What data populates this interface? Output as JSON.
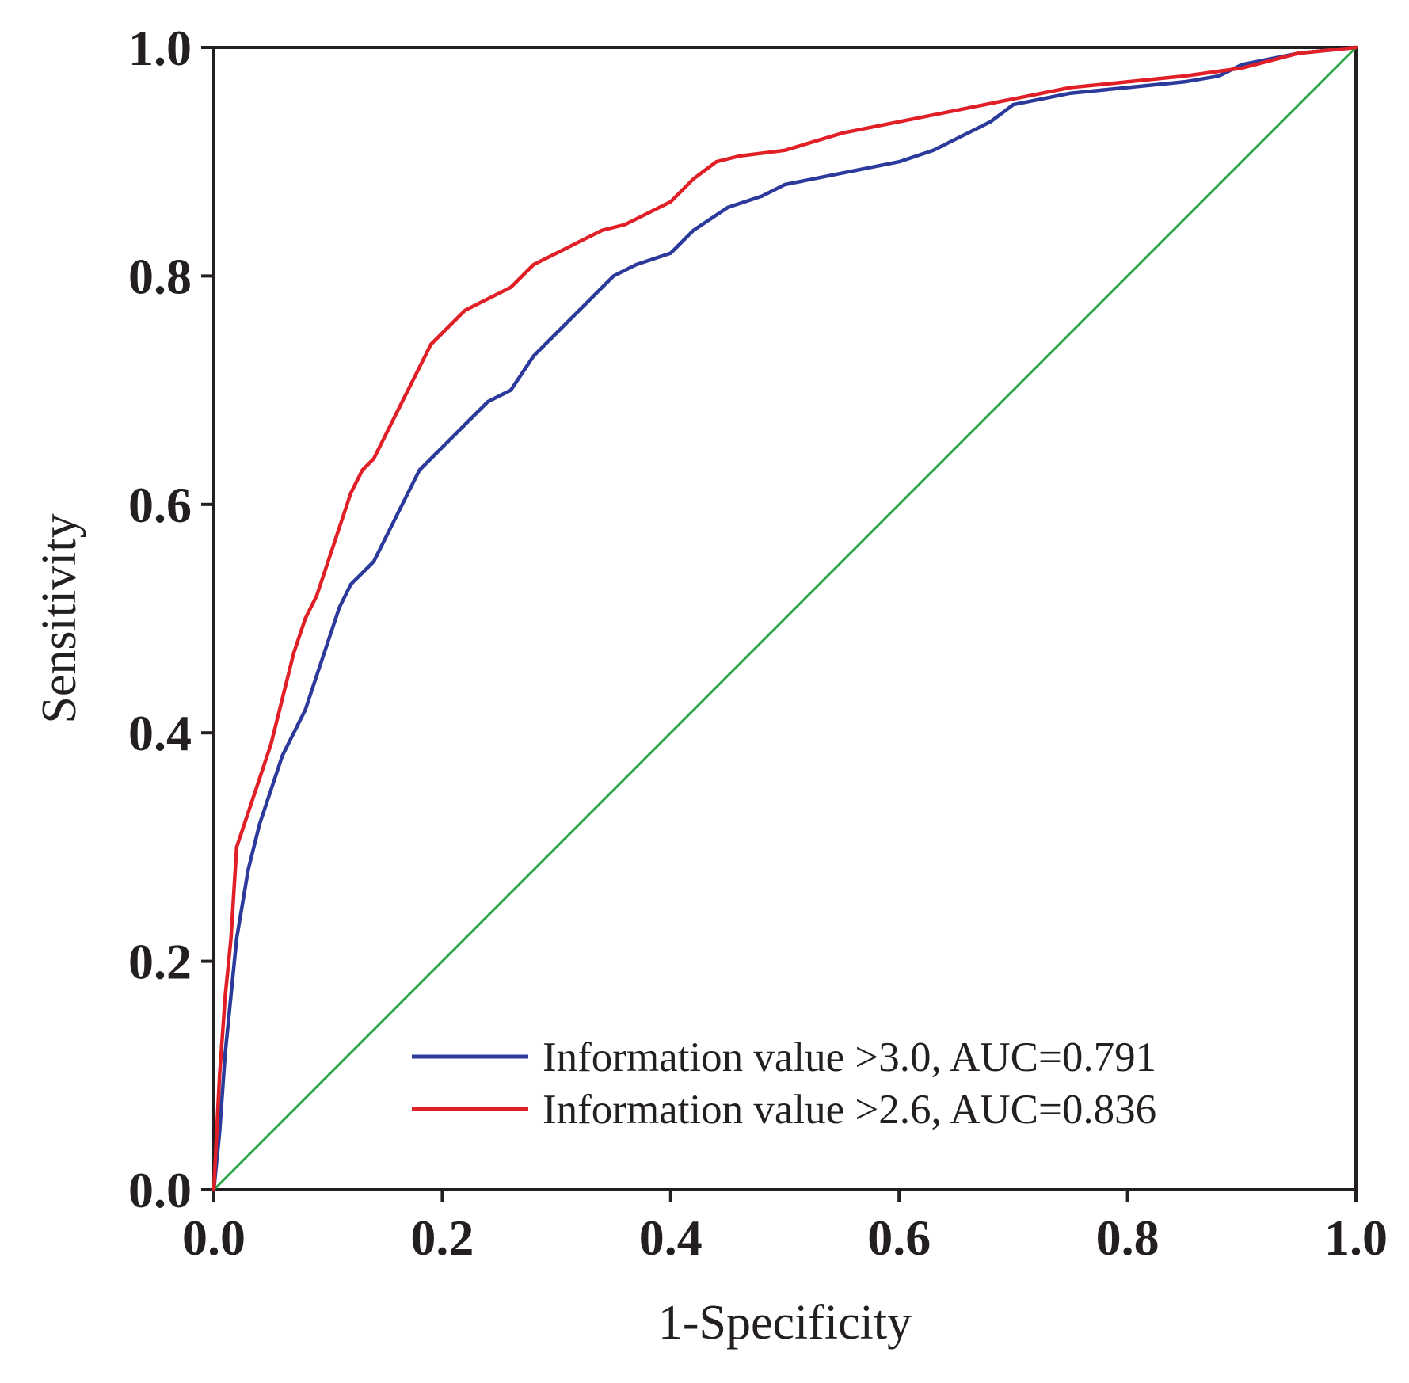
{
  "chart_data": {
    "type": "line",
    "title": "",
    "xlabel": "1-Specificity",
    "ylabel": "Sensitivity",
    "xlim": [
      0,
      1
    ],
    "ylim": [
      0,
      1
    ],
    "xticks": [
      "0.0",
      "0.2",
      "0.4",
      "0.6",
      "0.8",
      "1.0"
    ],
    "yticks": [
      "0.0",
      "0.2",
      "0.4",
      "0.6",
      "0.8",
      "1.0"
    ],
    "grid": false,
    "legend_position": "bottom-right",
    "series": [
      {
        "name": "Information value >3.0, AUC=0.791",
        "color": "#2b3a9b",
        "x": [
          0,
          0.005,
          0.01,
          0.015,
          0.02,
          0.03,
          0.04,
          0.05,
          0.06,
          0.07,
          0.08,
          0.09,
          0.1,
          0.11,
          0.12,
          0.13,
          0.14,
          0.15,
          0.16,
          0.17,
          0.18,
          0.19,
          0.2,
          0.21,
          0.22,
          0.24,
          0.26,
          0.28,
          0.3,
          0.32,
          0.33,
          0.35,
          0.37,
          0.4,
          0.42,
          0.45,
          0.48,
          0.5,
          0.55,
          0.6,
          0.63,
          0.66,
          0.68,
          0.7,
          0.75,
          0.8,
          0.85,
          0.88,
          0.9,
          0.95,
          1.0
        ],
        "y": [
          0,
          0.05,
          0.12,
          0.17,
          0.22,
          0.28,
          0.32,
          0.35,
          0.38,
          0.4,
          0.42,
          0.45,
          0.48,
          0.51,
          0.53,
          0.54,
          0.55,
          0.57,
          0.59,
          0.61,
          0.63,
          0.64,
          0.65,
          0.66,
          0.67,
          0.69,
          0.7,
          0.73,
          0.75,
          0.77,
          0.78,
          0.8,
          0.81,
          0.82,
          0.84,
          0.86,
          0.87,
          0.88,
          0.89,
          0.9,
          0.91,
          0.925,
          0.935,
          0.95,
          0.96,
          0.965,
          0.97,
          0.975,
          0.985,
          0.995,
          1.0
        ]
      },
      {
        "name": "Information value >2.6, AUC=0.836",
        "color": "#e01f26",
        "x": [
          0,
          0.005,
          0.01,
          0.015,
          0.02,
          0.03,
          0.04,
          0.05,
          0.06,
          0.07,
          0.08,
          0.09,
          0.1,
          0.11,
          0.12,
          0.13,
          0.14,
          0.15,
          0.16,
          0.17,
          0.18,
          0.19,
          0.2,
          0.22,
          0.24,
          0.26,
          0.28,
          0.3,
          0.32,
          0.34,
          0.36,
          0.38,
          0.4,
          0.42,
          0.44,
          0.46,
          0.5,
          0.55,
          0.6,
          0.65,
          0.7,
          0.75,
          0.8,
          0.85,
          0.9,
          0.95,
          1.0
        ],
        "y": [
          0,
          0.1,
          0.17,
          0.22,
          0.3,
          0.33,
          0.36,
          0.39,
          0.43,
          0.47,
          0.5,
          0.52,
          0.55,
          0.58,
          0.61,
          0.63,
          0.64,
          0.66,
          0.68,
          0.7,
          0.72,
          0.74,
          0.75,
          0.77,
          0.78,
          0.79,
          0.81,
          0.82,
          0.83,
          0.84,
          0.845,
          0.855,
          0.865,
          0.885,
          0.9,
          0.905,
          0.91,
          0.925,
          0.935,
          0.945,
          0.955,
          0.965,
          0.97,
          0.975,
          0.982,
          0.995,
          1.0
        ]
      },
      {
        "name": "",
        "color": "#27a844",
        "x": [
          0,
          1
        ],
        "y": [
          0,
          1
        ]
      }
    ]
  }
}
